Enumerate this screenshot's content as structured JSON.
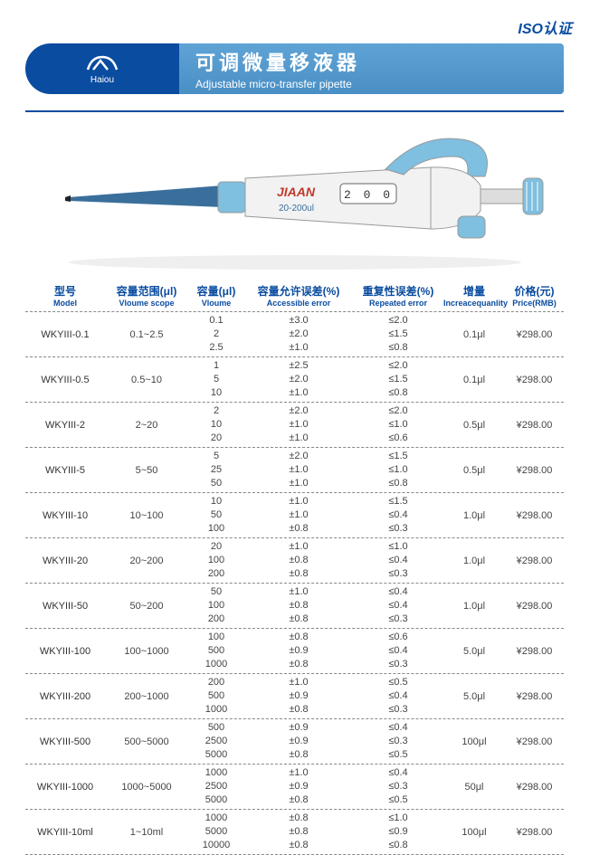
{
  "iso_label": "ISO认证",
  "brand_name": "Haiou",
  "title_cn": "可调微量移液器",
  "title_en": "Adjustable micro-transfer pipette",
  "pipette": {
    "brand": "JIAAN",
    "display": "2 0 0",
    "range_label": "20-200ul",
    "body_color": "#f2f2f2",
    "accent_color": "#7fbfe0",
    "tip_color": "#3a6f9c",
    "outline_color": "#999999"
  },
  "colors": {
    "primary": "#0a4ca0",
    "banner_grad_top": "#5fa3d6",
    "banner_grad_bottom": "#4a8fc4",
    "rule": "#0a4ca0",
    "text": "#444444",
    "dash": "#888888"
  },
  "headers": [
    {
      "cn": "型号",
      "en": "Model"
    },
    {
      "cn": "容量范围(μl)",
      "en": "Vloume scope"
    },
    {
      "cn": "容量(μl)",
      "en": "Vloume"
    },
    {
      "cn": "容量允许误差(%)",
      "en": "Accessible error"
    },
    {
      "cn": "重复性误差(%)",
      "en": "Repeated error"
    },
    {
      "cn": "增量",
      "en": "Increacequanlity"
    },
    {
      "cn": "价格(元)",
      "en": "Price(RMB)"
    }
  ],
  "rows": [
    {
      "model": "WKYIII-0.1",
      "scope": "0.1~2.5",
      "vol": [
        "0.1",
        "2",
        "2.5"
      ],
      "err": [
        "±3.0",
        "±2.0",
        "±1.0"
      ],
      "rep": [
        "≤2.0",
        "≤1.5",
        "≤0.8"
      ],
      "inc": "0.1μl",
      "price": "¥298.00"
    },
    {
      "model": "WKYIII-0.5",
      "scope": "0.5~10",
      "vol": [
        "1",
        "5",
        "10"
      ],
      "err": [
        "±2.5",
        "±2.0",
        "±1.0"
      ],
      "rep": [
        "≤2.0",
        "≤1.5",
        "≤0.8"
      ],
      "inc": "0.1μl",
      "price": "¥298.00"
    },
    {
      "model": "WKYIII-2",
      "scope": "2~20",
      "vol": [
        "2",
        "10",
        "20"
      ],
      "err": [
        "±2.0",
        "±1.0",
        "±1.0"
      ],
      "rep": [
        "≤2.0",
        "≤1.0",
        "≤0.6"
      ],
      "inc": "0.5μl",
      "price": "¥298.00"
    },
    {
      "model": "WKYIII-5",
      "scope": "5~50",
      "vol": [
        "5",
        "25",
        "50"
      ],
      "err": [
        "±2.0",
        "±1.0",
        "±1.0"
      ],
      "rep": [
        "≤1.5",
        "≤1.0",
        "≤0.8"
      ],
      "inc": "0.5μl",
      "price": "¥298.00"
    },
    {
      "model": "WKYIII-10",
      "scope": "10~100",
      "vol": [
        "10",
        "50",
        "100"
      ],
      "err": [
        "±1.0",
        "±1.0",
        "±0.8"
      ],
      "rep": [
        "≤1.5",
        "≤0.4",
        "≤0.3"
      ],
      "inc": "1.0μl",
      "price": "¥298.00"
    },
    {
      "model": "WKYIII-20",
      "scope": "20~200",
      "vol": [
        "20",
        "100",
        "200"
      ],
      "err": [
        "±1.0",
        "±0.8",
        "±0.8"
      ],
      "rep": [
        "≤1.0",
        "≤0.4",
        "≤0.3"
      ],
      "inc": "1.0μl",
      "price": "¥298.00"
    },
    {
      "model": "WKYIII-50",
      "scope": "50~200",
      "vol": [
        "50",
        "100",
        "200"
      ],
      "err": [
        "±1.0",
        "±0.8",
        "±0.8"
      ],
      "rep": [
        "≤0.4",
        "≤0.4",
        "≤0.3"
      ],
      "inc": "1.0μl",
      "price": "¥298.00"
    },
    {
      "model": "WKYIII-100",
      "scope": "100~1000",
      "vol": [
        "100",
        "500",
        "1000"
      ],
      "err": [
        "±0.8",
        "±0.9",
        "±0.8"
      ],
      "rep": [
        "≤0.6",
        "≤0.4",
        "≤0.3"
      ],
      "inc": "5.0μl",
      "price": "¥298.00"
    },
    {
      "model": "WKYIII-200",
      "scope": "200~1000",
      "vol": [
        "200",
        "500",
        "1000"
      ],
      "err": [
        "±1.0",
        "±0.9",
        "±0.8"
      ],
      "rep": [
        "≤0.5",
        "≤0.4",
        "≤0.3"
      ],
      "inc": "5.0μl",
      "price": "¥298.00"
    },
    {
      "model": "WKYIII-500",
      "scope": "500~5000",
      "vol": [
        "500",
        "2500",
        "5000"
      ],
      "err": [
        "±0.9",
        "±0.9",
        "±0.8"
      ],
      "rep": [
        "≤0.4",
        "≤0.3",
        "≤0.5"
      ],
      "inc": "100μl",
      "price": "¥298.00"
    },
    {
      "model": "WKYIII-1000",
      "scope": "1000~5000",
      "vol": [
        "1000",
        "2500",
        "5000"
      ],
      "err": [
        "±1.0",
        "±0.9",
        "±0.8"
      ],
      "rep": [
        "≤0.4",
        "≤0.3",
        "≤0.5"
      ],
      "inc": "50μl",
      "price": "¥298.00"
    },
    {
      "model": "WKYIII-10ml",
      "scope": "1~10ml",
      "vol": [
        "1000",
        "5000",
        "10000"
      ],
      "err": [
        "±0.8",
        "±0.8",
        "±0.8"
      ],
      "rep": [
        "≤1.0",
        "≤0.9",
        "≤0.8"
      ],
      "inc": "100μl",
      "price": "¥298.00"
    }
  ]
}
